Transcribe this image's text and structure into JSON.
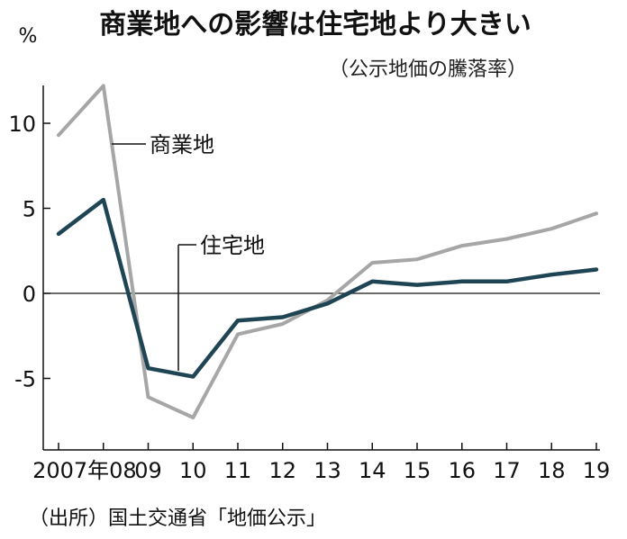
{
  "chart_data": {
    "type": "line",
    "title": "商業地への影響は住宅地より大きい",
    "subtitle": "（公示地価の騰落率）",
    "ylabel": "%",
    "source": "（出所）国土交通省「地価公示」",
    "x": [
      2007,
      2008,
      2009,
      2010,
      2011,
      2012,
      2013,
      2014,
      2015,
      2016,
      2017,
      2018,
      2019
    ],
    "tick_labels": [
      "2007年08",
      "09",
      "10",
      "11",
      "12",
      "13",
      "14",
      "15",
      "16",
      "17",
      "18",
      "19"
    ],
    "ylim": [
      -9.5,
      13.5
    ],
    "yticks": [
      10,
      5,
      0,
      -5
    ],
    "ytick_labels": [
      "10",
      "5",
      "0",
      "-5"
    ],
    "series": [
      {
        "name": "商業地",
        "color": "#a6a6a6",
        "values": [
          9.3,
          12.2,
          -6.1,
          -7.3,
          -2.4,
          -1.8,
          -0.4,
          1.8,
          2.0,
          2.8,
          3.2,
          3.8,
          4.7
        ]
      },
      {
        "name": "住宅地",
        "color": "#1f4555",
        "values": [
          3.5,
          5.5,
          -4.4,
          -4.9,
          -1.6,
          -1.4,
          -0.6,
          0.7,
          0.5,
          0.7,
          0.7,
          1.1,
          1.4
        ]
      }
    ],
    "zero_line": true,
    "grid": false
  }
}
